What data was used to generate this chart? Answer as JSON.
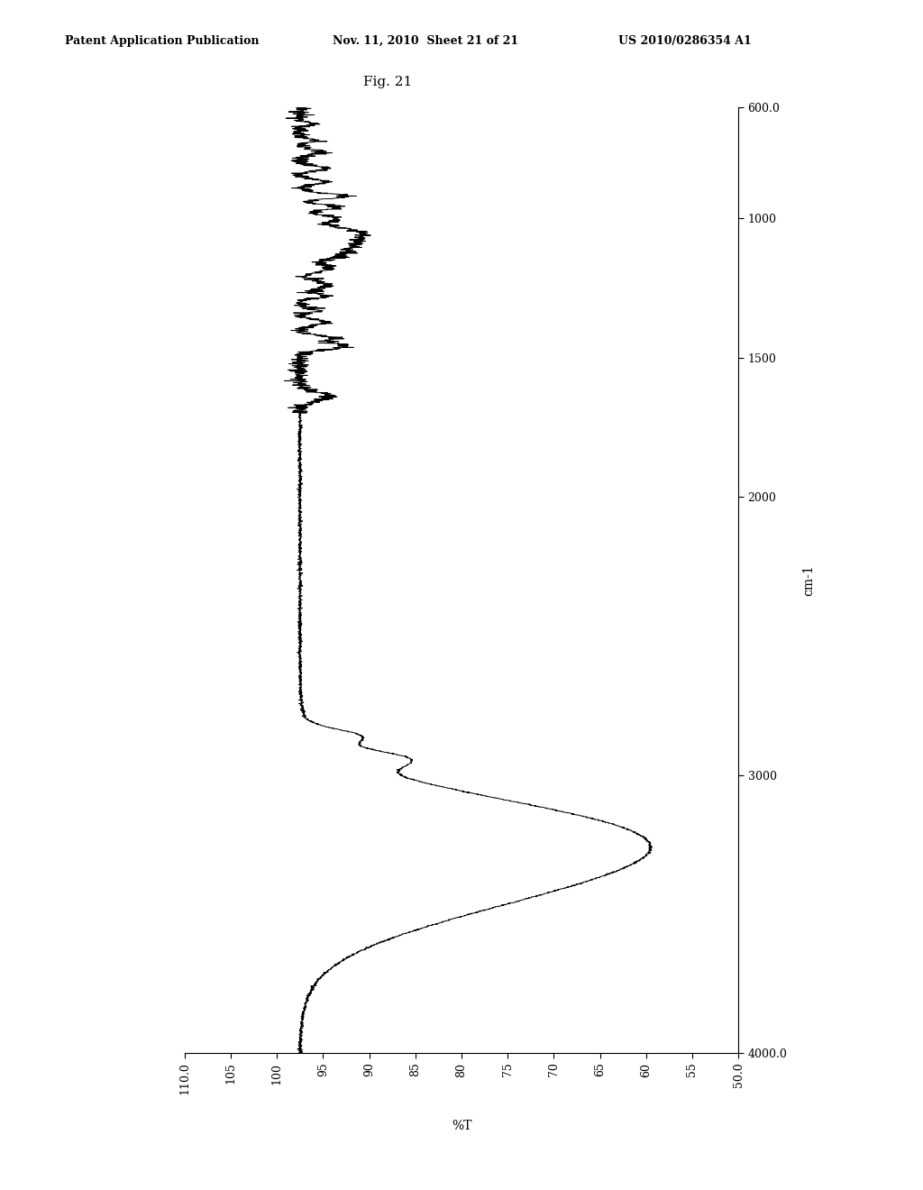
{
  "title": "Fig. 21",
  "header_left": "Patent Application Publication",
  "header_center": "Nov. 11, 2010  Sheet 21 of 21",
  "header_right": "US 2010/0286354 A1",
  "xlabel": "%T",
  "ylabel": "cm-1",
  "x_label_values": [
    110.0,
    105,
    100,
    95,
    90,
    85,
    80,
    75,
    70,
    65,
    60,
    55,
    50.0
  ],
  "y_label_values": [
    600.0,
    1000,
    1500,
    2000,
    3000,
    4000.0
  ],
  "background_color": "#ffffff",
  "line_color": "#000000",
  "xmin": 50.0,
  "xmax": 110.0,
  "ymin": 600.0,
  "ymax": 4000.0
}
